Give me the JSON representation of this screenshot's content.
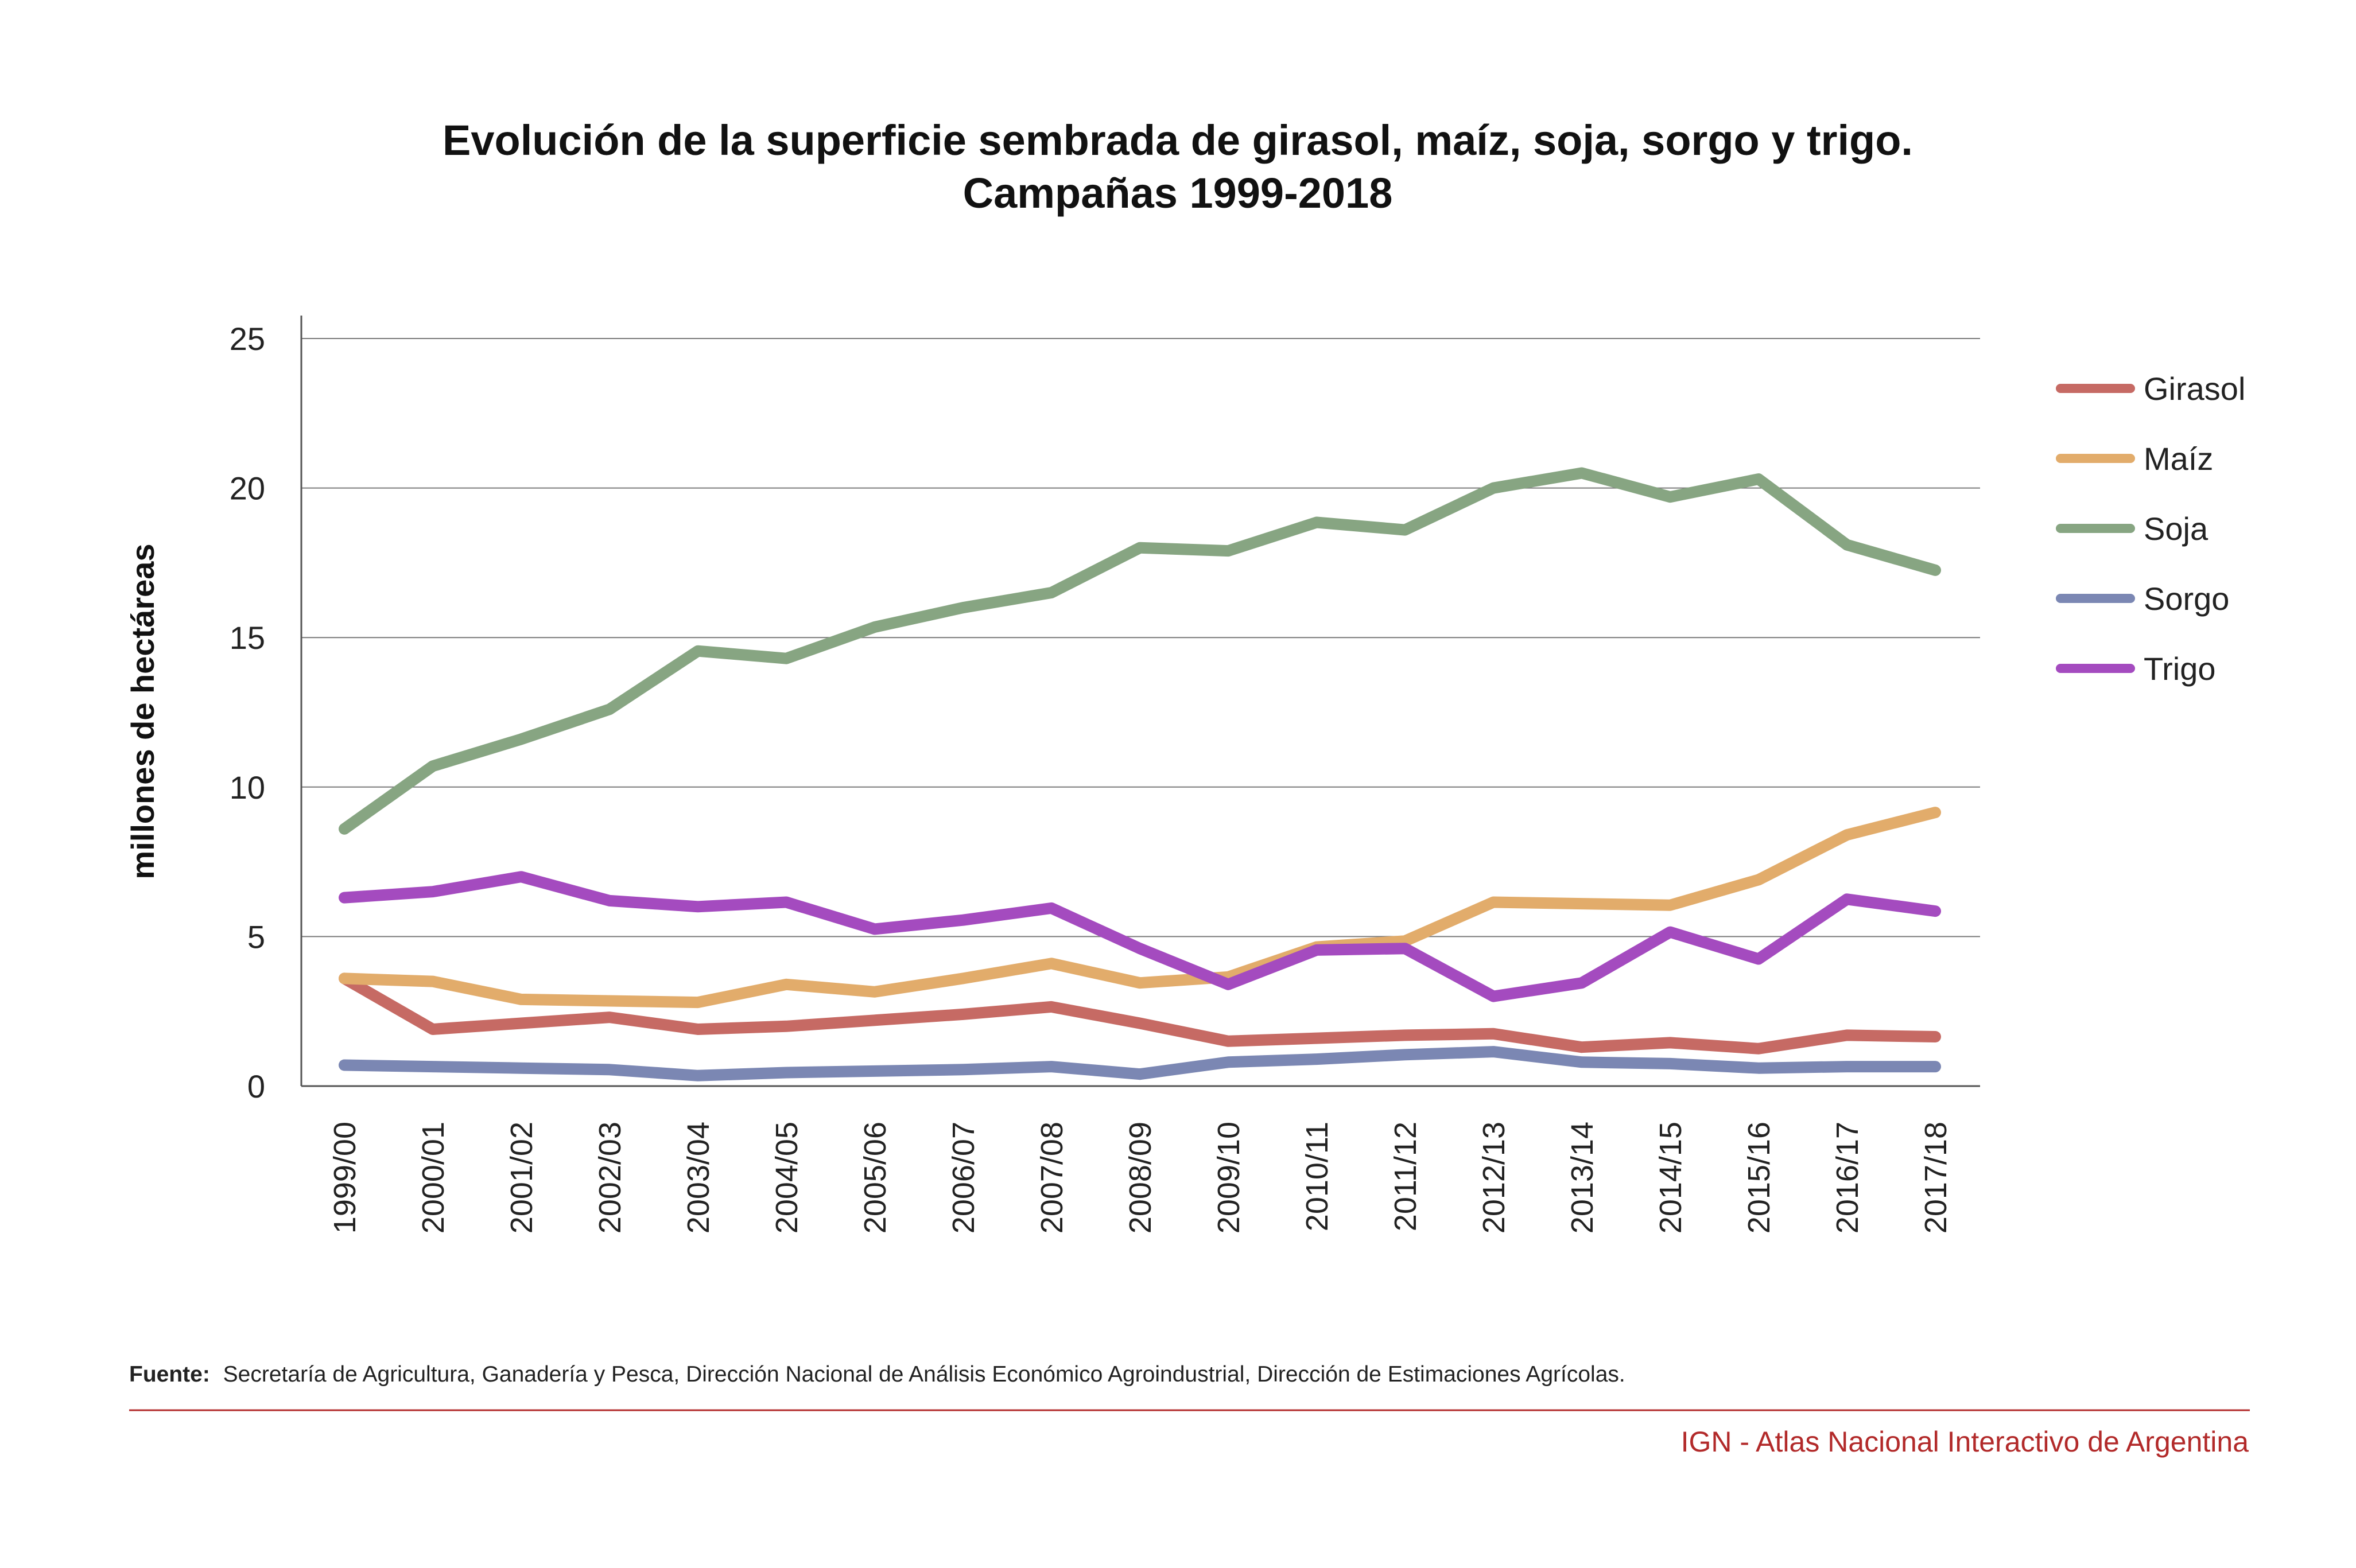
{
  "title_line1": "Evolución de la superficie sembrada de girasol, maíz, soja, sorgo y trigo.",
  "title_line2": "Campañas 1999-2018",
  "source_label": "Fuente:",
  "source_text": "Secretaría de Agricultura, Ganadería y Pesca, Dirección Nacional de Análisis Económico Agroindustrial, Dirección de Estimaciones Agrícolas.",
  "credit": "IGN - Atlas Nacional Interactivo de Argentina",
  "colors": {
    "grid": "#7a7a7a",
    "axis": "#555555",
    "source_rule": "#b22a2a",
    "credit": "#b22a2a"
  },
  "chart_data": {
    "type": "line",
    "xlabel": "",
    "ylabel": "millones de hectáreas",
    "ylim": [
      0,
      25
    ],
    "yticks": [
      0,
      5,
      10,
      15,
      20,
      25
    ],
    "grid": "horizontal",
    "legend_position": "right",
    "categories": [
      "1999/00",
      "2000/01",
      "2001/02",
      "2002/03",
      "2003/04",
      "2004/05",
      "2005/06",
      "2006/07",
      "2007/08",
      "2008/09",
      "2009/10",
      "2010/11",
      "2011/12",
      "2012/13",
      "2013/14",
      "2014/15",
      "2015/16",
      "2016/17",
      "2017/18"
    ],
    "series": [
      {
        "name": "Girasol",
        "color": "#c66a64",
        "values": [
          3.6,
          1.9,
          2.1,
          2.3,
          1.9,
          2.0,
          2.2,
          2.4,
          2.65,
          2.1,
          1.5,
          1.6,
          1.7,
          1.75,
          1.3,
          1.45,
          1.25,
          1.7,
          1.65
        ]
      },
      {
        "name": "Maíz",
        "color": "#e2ac6b",
        "values": [
          3.6,
          3.5,
          2.9,
          2.85,
          2.8,
          3.4,
          3.15,
          3.6,
          4.1,
          3.45,
          3.65,
          4.65,
          4.85,
          6.15,
          6.1,
          6.05,
          6.9,
          8.4,
          9.15
        ]
      },
      {
        "name": "Soja",
        "color": "#87a582",
        "values": [
          8.6,
          10.7,
          11.6,
          12.6,
          14.55,
          14.3,
          15.35,
          16.0,
          16.5,
          18.0,
          17.9,
          18.85,
          18.6,
          20.0,
          20.5,
          19.7,
          20.3,
          18.1,
          17.25
        ]
      },
      {
        "name": "Sorgo",
        "color": "#7b87b3",
        "values": [
          0.7,
          0.65,
          0.6,
          0.55,
          0.35,
          0.45,
          0.5,
          0.55,
          0.65,
          0.4,
          0.8,
          0.9,
          1.05,
          1.15,
          0.8,
          0.75,
          0.6,
          0.65,
          0.65
        ]
      },
      {
        "name": "Trigo",
        "color": "#a44bbf",
        "values": [
          6.3,
          6.5,
          7.0,
          6.2,
          6.0,
          6.15,
          5.25,
          5.55,
          5.95,
          4.6,
          3.4,
          4.55,
          4.6,
          3.0,
          3.45,
          5.15,
          4.25,
          6.25,
          5.85
        ]
      }
    ]
  }
}
